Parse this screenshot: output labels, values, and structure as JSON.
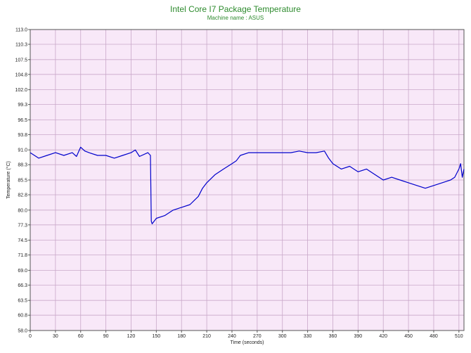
{
  "chart_data": {
    "type": "line",
    "title": "Intel Core I7 Package Temperature",
    "subtitle": "Machine name : ASUS",
    "xlabel": "Time (seconds)",
    "ylabel": "Temperature (°C)",
    "xlim": [
      0,
      516
    ],
    "ylim": [
      58.0,
      113.0
    ],
    "x_ticks": [
      "0",
      "30",
      "60",
      "90",
      "120",
      "150",
      "180",
      "210",
      "240",
      "270",
      "300",
      "330",
      "360",
      "390",
      "420",
      "450",
      "480",
      "510"
    ],
    "y_ticks": [
      "113.0",
      "110.3",
      "107.5",
      "104.8",
      "102.0",
      "99.3",
      "96.5",
      "93.8",
      "91.0",
      "88.3",
      "85.5",
      "82.8",
      "80.0",
      "77.3",
      "74.5",
      "71.8",
      "69.0",
      "66.3",
      "63.5",
      "60.8",
      "58.0"
    ],
    "grid": true,
    "series": [
      {
        "name": "",
        "color": "#0000cc",
        "x": [
          0,
          10,
          20,
          30,
          40,
          50,
          55,
          60,
          65,
          70,
          80,
          90,
          100,
          110,
          120,
          125,
          130,
          140,
          143,
          144,
          145,
          150,
          160,
          170,
          180,
          190,
          200,
          205,
          210,
          220,
          230,
          240,
          245,
          250,
          260,
          270,
          280,
          290,
          300,
          310,
          320,
          330,
          340,
          350,
          355,
          360,
          370,
          380,
          390,
          400,
          410,
          420,
          430,
          440,
          450,
          460,
          470,
          480,
          490,
          500,
          505,
          510,
          512,
          514,
          516
        ],
        "y": [
          90.5,
          89.5,
          90.0,
          90.5,
          90.0,
          90.5,
          89.8,
          91.5,
          90.8,
          90.5,
          90.0,
          90.0,
          89.5,
          90.0,
          90.5,
          91.0,
          89.8,
          90.5,
          90.0,
          78.0,
          77.5,
          78.5,
          79.0,
          80.0,
          80.5,
          81.0,
          82.5,
          84.0,
          85.0,
          86.5,
          87.5,
          88.5,
          89.0,
          90.0,
          90.5,
          90.5,
          90.5,
          90.5,
          90.5,
          90.5,
          90.8,
          90.5,
          90.5,
          90.8,
          89.5,
          88.5,
          87.5,
          88.0,
          87.0,
          87.5,
          86.5,
          85.5,
          86.0,
          85.5,
          85.0,
          84.5,
          84.0,
          84.5,
          85.0,
          85.5,
          86.0,
          87.5,
          88.5,
          86.0,
          87.5
        ]
      }
    ]
  }
}
